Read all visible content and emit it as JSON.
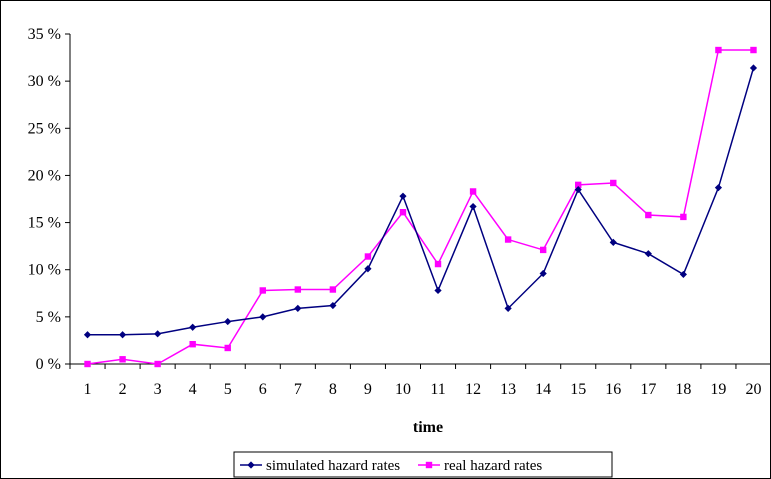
{
  "chart_data": {
    "type": "line",
    "title": "",
    "xlabel": "time",
    "ylabel": "",
    "categories": [
      "1",
      "2",
      "3",
      "4",
      "5",
      "6",
      "7",
      "8",
      "9",
      "10",
      "11",
      "12",
      "13",
      "14",
      "15",
      "16",
      "17",
      "18",
      "19",
      "20"
    ],
    "ylim": [
      0,
      35
    ],
    "yticks": [
      0,
      5,
      10,
      15,
      20,
      25,
      30,
      35
    ],
    "ytick_labels": [
      "0 %",
      "5 %",
      "10 %",
      "15 %",
      "20 %",
      "25 %",
      "30 %",
      "35 %"
    ],
    "grid": false,
    "legend_position": "bottom",
    "series": [
      {
        "name": "simulated hazard rates",
        "color": "#000080",
        "marker": "diamond",
        "values": [
          3.1,
          3.1,
          3.2,
          3.9,
          4.5,
          5.0,
          5.9,
          6.2,
          10.1,
          17.8,
          7.8,
          16.7,
          5.9,
          9.6,
          18.5,
          12.9,
          11.7,
          9.5,
          18.7,
          31.4
        ]
      },
      {
        "name": "real hazard rates",
        "color": "#ff00ff",
        "marker": "square",
        "values": [
          0.0,
          0.5,
          0.0,
          2.1,
          1.7,
          7.8,
          7.9,
          7.9,
          11.4,
          16.1,
          10.6,
          18.3,
          13.2,
          12.1,
          19.0,
          19.2,
          15.8,
          15.6,
          33.3,
          33.3
        ]
      }
    ]
  }
}
